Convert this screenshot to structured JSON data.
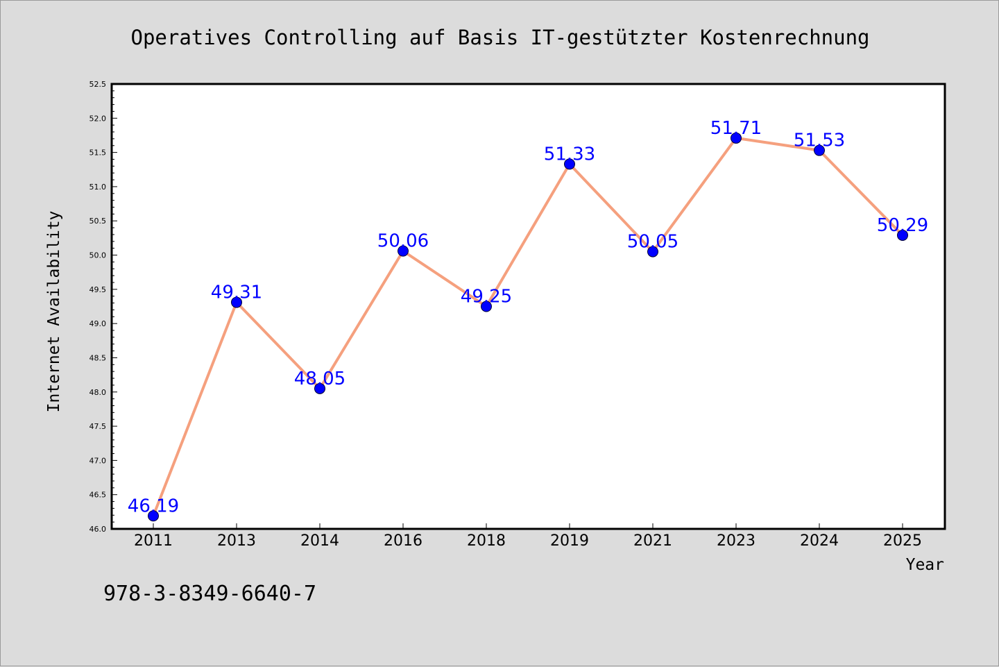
{
  "chart_data": {
    "type": "line",
    "title": "Operatives Controlling auf Basis IT-gestützter Kostenrechnung",
    "xlabel": "Year",
    "ylabel": "Internet Availability",
    "categories": [
      "2011",
      "2013",
      "2014",
      "2016",
      "2018",
      "2019",
      "2021",
      "2023",
      "2024",
      "2025"
    ],
    "series": [
      {
        "values": [
          46.19,
          49.31,
          48.05,
          50.06,
          49.25,
          51.33,
          50.05,
          51.71,
          51.53,
          50.29
        ],
        "data_labels": [
          "46.19",
          "49.31",
          "48.05",
          "50.06",
          "49.25",
          "51.33",
          "50.05",
          "51.71",
          "51.53",
          "50.29"
        ]
      }
    ],
    "ylim": [
      46.0,
      52.5
    ],
    "yticks": [
      "46.0",
      "46.5",
      "47.0",
      "47.5",
      "48.0",
      "48.5",
      "49.0",
      "49.5",
      "50.0",
      "50.5",
      "51.0",
      "51.5",
      "52.0",
      "52.5"
    ],
    "grid": false,
    "legend": "none",
    "colors": {
      "line": "#f5a07e",
      "marker": "#0000ff",
      "label": "#0000ff",
      "background": "#dcdcdc",
      "plot_area": "#ffffff"
    }
  },
  "footer": {
    "isbn": "978-3-8349-6640-7"
  }
}
